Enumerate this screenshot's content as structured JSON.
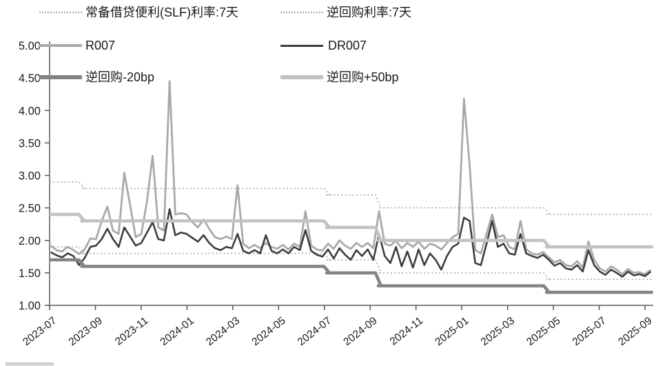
{
  "chart_data": {
    "type": "line",
    "title": "",
    "xlabel": "",
    "ylabel": "",
    "ylim": [
      1.0,
      5.0
    ],
    "ytick_step": 0.5,
    "ytick_labels": [
      "5.00",
      "4.50",
      "4.00",
      "3.50",
      "3.00",
      "2.50",
      "2.00",
      "1.50",
      "1.00"
    ],
    "xtick_labels": [
      "2023-07",
      "2023-09",
      "2023-11",
      "2024-01",
      "2024-03",
      "2024-05",
      "2024-07",
      "2024-09",
      "2024-11",
      "2025-01",
      "2025-03",
      "2025-05",
      "2025-07",
      "2025-09"
    ],
    "x_months_span": 26.35,
    "grid": false,
    "legend_position": "top",
    "legend": [
      {
        "label": "常备借贷便利(SLF)利率:7天",
        "color": "#a6a6a6",
        "style": "dotted",
        "width": 1.6
      },
      {
        "label": "逆回购利率:7天",
        "color": "#a6a6a6",
        "style": "dotted",
        "width": 1.6
      },
      {
        "label": "R007",
        "color": "#a9a9a9",
        "style": "solid",
        "width": 2.8
      },
      {
        "label": "DR007",
        "color": "#3d3d3d",
        "style": "solid",
        "width": 2.6
      },
      {
        "label": "逆回购-20bp",
        "color": "#848484",
        "style": "solid",
        "width": 4.6
      },
      {
        "label": "逆回购+50bp",
        "color": "#c2c2c2",
        "style": "solid",
        "width": 4.6
      }
    ],
    "step_series": [
      {
        "name": "常备借贷便利(SLF)利率:7天",
        "color": "#a6a6a6",
        "style": "dotted",
        "width": 1.6,
        "breaks": [
          [
            0,
            2.9
          ],
          [
            1.4,
            2.8
          ],
          [
            12.1,
            2.7
          ],
          [
            14.35,
            2.5
          ],
          [
            21.7,
            2.4
          ],
          [
            26.35,
            2.4
          ]
        ]
      },
      {
        "name": "逆回购利率:7天",
        "color": "#a6a6a6",
        "style": "dotted",
        "width": 1.6,
        "breaks": [
          [
            0,
            1.9
          ],
          [
            1.4,
            1.8
          ],
          [
            12.1,
            1.7
          ],
          [
            14.35,
            1.5
          ],
          [
            21.7,
            1.4
          ],
          [
            26.35,
            1.4
          ]
        ]
      },
      {
        "name": "逆回购-20bp",
        "color": "#848484",
        "style": "solid",
        "width": 4.6,
        "breaks": [
          [
            0,
            1.7
          ],
          [
            1.4,
            1.6
          ],
          [
            12.1,
            1.5
          ],
          [
            14.35,
            1.3
          ],
          [
            21.7,
            1.2
          ],
          [
            26.35,
            1.2
          ]
        ]
      },
      {
        "name": "逆回购+50bp",
        "color": "#c2c2c2",
        "style": "solid",
        "width": 4.6,
        "breaks": [
          [
            0,
            2.4
          ],
          [
            1.4,
            2.3
          ],
          [
            12.1,
            2.2
          ],
          [
            14.35,
            2.0
          ],
          [
            21.7,
            1.9
          ],
          [
            26.35,
            1.9
          ]
        ]
      }
    ],
    "line_series": [
      {
        "name": "R007",
        "color": "#a9a9a9",
        "width": 2.8,
        "values": [
          1.92,
          1.85,
          1.83,
          1.9,
          1.85,
          1.79,
          1.86,
          2.03,
          2.02,
          2.3,
          2.52,
          2.15,
          2.1,
          3.04,
          2.55,
          2.05,
          2.1,
          2.6,
          3.3,
          2.2,
          2.15,
          4.45,
          2.4,
          2.42,
          2.4,
          2.28,
          2.2,
          2.32,
          2.18,
          2.05,
          2.02,
          2.06,
          2.02,
          2.85,
          1.95,
          1.88,
          1.93,
          1.88,
          1.96,
          1.9,
          1.87,
          1.93,
          1.86,
          1.95,
          1.9,
          2.45,
          1.92,
          1.86,
          1.84,
          1.95,
          1.87,
          2.0,
          1.92,
          1.87,
          1.96,
          1.9,
          1.96,
          1.88,
          2.45,
          1.95,
          1.92,
          1.99,
          1.88,
          1.96,
          1.9,
          1.98,
          1.87,
          1.95,
          1.92,
          1.86,
          1.96,
          2.05,
          2.1,
          4.18,
          3.17,
          1.85,
          1.8,
          2.1,
          2.4,
          2.05,
          2.08,
          1.9,
          1.86,
          2.3,
          1.86,
          1.8,
          1.78,
          1.82,
          1.74,
          1.66,
          1.7,
          1.62,
          1.6,
          1.68,
          1.58,
          1.98,
          1.7,
          1.57,
          1.52,
          1.6,
          1.55,
          1.48,
          1.56,
          1.5,
          1.51,
          1.48,
          1.55
        ]
      },
      {
        "name": "DR007",
        "color": "#3d3d3d",
        "width": 2.6,
        "values": [
          1.82,
          1.77,
          1.74,
          1.8,
          1.76,
          1.62,
          1.73,
          1.9,
          1.92,
          2.02,
          2.18,
          2.02,
          1.9,
          2.2,
          2.06,
          1.92,
          1.96,
          2.12,
          2.28,
          2.02,
          2.0,
          2.48,
          2.08,
          2.12,
          2.1,
          2.04,
          1.98,
          2.08,
          1.96,
          1.88,
          1.85,
          1.9,
          1.88,
          2.1,
          1.84,
          1.8,
          1.85,
          1.8,
          2.08,
          1.84,
          1.8,
          1.86,
          1.8,
          1.9,
          1.85,
          2.16,
          1.84,
          1.78,
          1.75,
          1.86,
          1.72,
          1.88,
          1.78,
          1.7,
          1.85,
          1.76,
          1.86,
          1.7,
          2.1,
          1.76,
          1.65,
          1.9,
          1.6,
          1.83,
          1.58,
          1.86,
          1.62,
          1.8,
          1.7,
          1.55,
          1.76,
          1.9,
          1.95,
          2.35,
          2.3,
          1.65,
          1.62,
          1.95,
          2.3,
          1.9,
          1.95,
          1.8,
          1.78,
          2.1,
          1.8,
          1.76,
          1.73,
          1.78,
          1.7,
          1.61,
          1.65,
          1.57,
          1.55,
          1.62,
          1.52,
          1.85,
          1.62,
          1.52,
          1.47,
          1.55,
          1.5,
          1.44,
          1.52,
          1.46,
          1.48,
          1.45,
          1.52
        ]
      }
    ],
    "axis_color": "#595959",
    "tick_label_color": "#1a1a1a"
  }
}
